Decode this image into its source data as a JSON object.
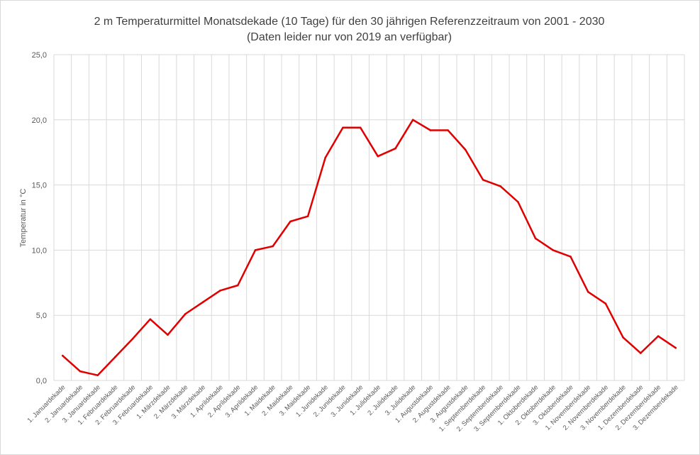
{
  "chart_data": {
    "type": "line",
    "title": "2 m Temperaturmittel Monatsdekade (10 Tage) für den 30 jährigen Referenzzeitraum von 2001 - 2030",
    "subtitle": "(Daten leider  nur von 2019 an verfügbar)",
    "xlabel": "",
    "ylabel": "Temperatur  in °C",
    "ylim": [
      0,
      25
    ],
    "yticks": [
      "0,0",
      "5,0",
      "10,0",
      "15,0",
      "20,0",
      "25,0"
    ],
    "ytick_values": [
      0,
      5,
      10,
      15,
      20,
      25
    ],
    "grid": true,
    "line_color": "#e00000",
    "categories": [
      "1. Januardekade",
      "2. Januardekade",
      "3. Januardekade",
      "1. Februardekade",
      "2. Februardekade",
      "3. Februardekade",
      "1. Märzdekade",
      "2. Märzdekade",
      "3. Märzdekade",
      "1. Aprildekade",
      "2. Aprildekade",
      "3. Aprildekade",
      "1. Maidekade",
      "2. Maidekade",
      "3. Maidekade",
      "1. Junidekade",
      "2. Junidekade",
      "3. Junidekade",
      "1. Julidekade",
      "2. Julidekade",
      "3. Julidekade",
      "1. Augustdekade",
      "2. Augustdekade",
      "3. Augustdekade",
      "1. Septemberdekade",
      "2. Septemberdekade",
      "3. Septemberdekade",
      "1. Oktoberdekade",
      "2. Oktoberdekade",
      "3. Oktoberdekade",
      "1. Novemberdekade",
      "2. Novemberdekade",
      "3. Novemberdekade",
      "1. Dezemberdekade",
      "2. Dezemberdekade",
      "3. Dezemberdekade"
    ],
    "series": [
      {
        "values": [
          1.9,
          0.7,
          0.4,
          1.8,
          3.2,
          4.7,
          3.5,
          5.1,
          6.0,
          6.9,
          7.3,
          10.0,
          10.3,
          12.2,
          12.6,
          17.1,
          19.4,
          19.4,
          17.2,
          17.8,
          20.0,
          19.2,
          19.2,
          17.7,
          15.4,
          14.9,
          13.7,
          10.9,
          10.0,
          9.5,
          6.8,
          5.9,
          3.3,
          2.1,
          3.4,
          2.5
        ]
      }
    ]
  }
}
